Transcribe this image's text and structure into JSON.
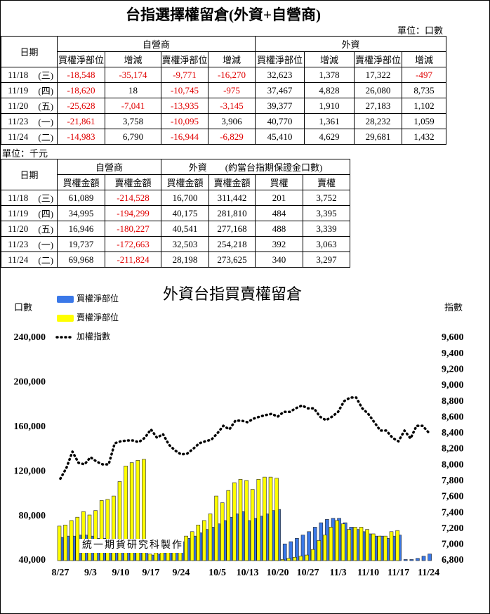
{
  "title": "台指選擇權留倉(外資+自營商)",
  "unit_top": "單位：口數",
  "table1": {
    "header_groups": [
      "日期",
      "自營商",
      "外資"
    ],
    "columns": [
      "買權淨部位",
      "增減",
      "賣權淨部位",
      "增減",
      "買權淨部位",
      "增減",
      "賣權淨部位",
      "增減"
    ],
    "rows": [
      [
        "11/18",
        "(三)",
        "-18,548",
        "-35,174",
        "-9,771",
        "-16,270",
        "32,623",
        "1,378",
        "17,322",
        "-497"
      ],
      [
        "11/19",
        "(四)",
        "-18,620",
        "18",
        "-10,745",
        "-975",
        "37,467",
        "4,828",
        "26,080",
        "8,735"
      ],
      [
        "11/20",
        "(五)",
        "-25,628",
        "-7,041",
        "-13,935",
        "-3,145",
        "39,377",
        "1,910",
        "27,183",
        "1,102"
      ],
      [
        "11/23",
        "(一)",
        "-21,861",
        "3,758",
        "-10,095",
        "3,906",
        "40,770",
        "1,361",
        "28,232",
        "1,059"
      ],
      [
        "11/24",
        "(二)",
        "-14,983",
        "6,790",
        "-16,944",
        "-6,829",
        "45,410",
        "4,629",
        "29,681",
        "1,432"
      ]
    ]
  },
  "unit_mid": "單位：千元",
  "table2": {
    "header_groups": [
      "日期",
      "自營商",
      "外資　　(約當台指期保證金口數)"
    ],
    "columns": [
      "買權金額",
      "賣權金額",
      "買權金額",
      "賣權金額",
      "買權",
      "賣權"
    ],
    "rows": [
      [
        "11/18",
        "(三)",
        "61,089",
        "-214,528",
        "16,700",
        "311,442",
        "201",
        "3,752"
      ],
      [
        "11/19",
        "(四)",
        "34,995",
        "-194,299",
        "40,175",
        "281,810",
        "484",
        "3,395"
      ],
      [
        "11/20",
        "(五)",
        "16,946",
        "-180,227",
        "40,541",
        "277,168",
        "488",
        "3,339"
      ],
      [
        "11/23",
        "(一)",
        "19,737",
        "-172,663",
        "32,503",
        "254,218",
        "392",
        "3,063"
      ],
      [
        "11/24",
        "(二)",
        "69,968",
        "-211,824",
        "28,198",
        "273,625",
        "340",
        "3,297"
      ]
    ]
  },
  "chart_data": {
    "type": "bar-line",
    "title": "外資台指買賣權留倉",
    "ylabel": "口數",
    "y2label": "指數",
    "annotation": "統一期貨研究科製作",
    "legend": "top-left",
    "categories": [
      "8/27",
      null,
      null,
      null,
      null,
      "9/3",
      null,
      null,
      null,
      null,
      "9/10",
      null,
      null,
      null,
      null,
      "9/17",
      null,
      null,
      null,
      null,
      "9/24",
      null,
      null,
      null,
      null,
      null,
      "10/5",
      null,
      null,
      null,
      null,
      "10/13",
      null,
      null,
      null,
      null,
      "10/20",
      null,
      null,
      null,
      null,
      "10/27",
      null,
      null,
      null,
      null,
      "11/3",
      null,
      null,
      null,
      null,
      "11/10",
      null,
      null,
      null,
      null,
      "11/17",
      null,
      null,
      null,
      null,
      "11/24"
    ],
    "series": [
      {
        "name": "買權淨部位",
        "color": "#3a78e8",
        "values": [
          61000,
          62000,
          62000,
          63000,
          63000,
          62000,
          60000,
          60000,
          58000,
          58000,
          56000,
          55000,
          54000,
          53000,
          52000,
          45000,
          46000,
          47000,
          50000,
          53000,
          57000,
          60000,
          62000,
          65000,
          68000,
          70000,
          73000,
          76000,
          79000,
          82000,
          84000,
          76000,
          78000,
          80000,
          82000,
          85000,
          86000,
          55000,
          57000,
          60000,
          63000,
          66000,
          70000,
          74000,
          77000,
          78000,
          78000,
          74000,
          70000,
          68000,
          66000,
          64000,
          62000,
          62000,
          60000,
          62000,
          63000,
          41000,
          41000,
          42000,
          44000,
          46000
        ]
      },
      {
        "name": "賣權淨部位",
        "color": "#ffff00",
        "values": [
          71000,
          72000,
          76000,
          79000,
          84000,
          81000,
          85000,
          94000,
          95000,
          98000,
          111000,
          125000,
          128000,
          130000,
          131000,
          46000,
          47000,
          48000,
          50000,
          55000,
          58000,
          62000,
          66000,
          72000,
          76000,
          82000,
          98000,
          92000,
          103000,
          110000,
          113000,
          112000,
          104000,
          113000,
          115000,
          115000,
          114000,
          41000,
          42000,
          43000,
          44000,
          45000,
          50000,
          58000,
          63000,
          70000,
          76000,
          73000,
          68000,
          70000,
          70000,
          68000,
          64000,
          62000,
          62000,
          66000,
          67000,
          40000,
          40000,
          40000,
          40000,
          40000
        ]
      },
      {
        "name": "加權指數",
        "color": "#000000",
        "axis": "y2",
        "values": [
          7830,
          7965,
          8170,
          8030,
          8010,
          8100,
          8045,
          8010,
          8010,
          8275,
          8300,
          8310,
          8310,
          8290,
          8345,
          8450,
          8345,
          8390,
          8255,
          8185,
          8135,
          8145,
          8205,
          8275,
          8300,
          8320,
          8400,
          8495,
          8450,
          8560,
          8560,
          8540,
          8585,
          8610,
          8630,
          8645,
          8610,
          8670,
          8670,
          8715,
          8750,
          8715,
          8715,
          8610,
          8565,
          8610,
          8670,
          8805,
          8850,
          8850,
          8715,
          8645,
          8540,
          8435,
          8435,
          8345,
          8300,
          8435,
          8335,
          8495,
          8495,
          8410
        ]
      }
    ],
    "ylim": [
      40000,
      240000
    ],
    "yticks": [
      {
        "value": 40000,
        "label": "40,000"
      },
      {
        "value": 80000,
        "label": "80,000"
      },
      {
        "value": 120000,
        "label": "120,000"
      },
      {
        "value": 160000,
        "label": "160,000"
      },
      {
        "value": 200000,
        "label": "200,000"
      },
      {
        "value": 240000,
        "label": "240,000"
      }
    ],
    "y2lim": [
      6800,
      9600
    ],
    "y2ticks": [
      {
        "value": 6800,
        "label": "6,800"
      },
      {
        "value": 7000,
        "label": "7,000"
      },
      {
        "value": 7200,
        "label": "7,200"
      },
      {
        "value": 7400,
        "label": "7,400"
      },
      {
        "value": 7600,
        "label": "7,600"
      },
      {
        "value": 7800,
        "label": "7,800"
      },
      {
        "value": 8000,
        "label": "8,000"
      },
      {
        "value": 8200,
        "label": "8,200"
      },
      {
        "value": 8400,
        "label": "8,400"
      },
      {
        "value": 8600,
        "label": "8,600"
      },
      {
        "value": 8800,
        "label": "8,800"
      },
      {
        "value": 9000,
        "label": "9,000"
      },
      {
        "value": 9200,
        "label": "9,200"
      },
      {
        "value": 9400,
        "label": "9,400"
      },
      {
        "value": 9600,
        "label": "9,600"
      }
    ],
    "grid": false
  }
}
